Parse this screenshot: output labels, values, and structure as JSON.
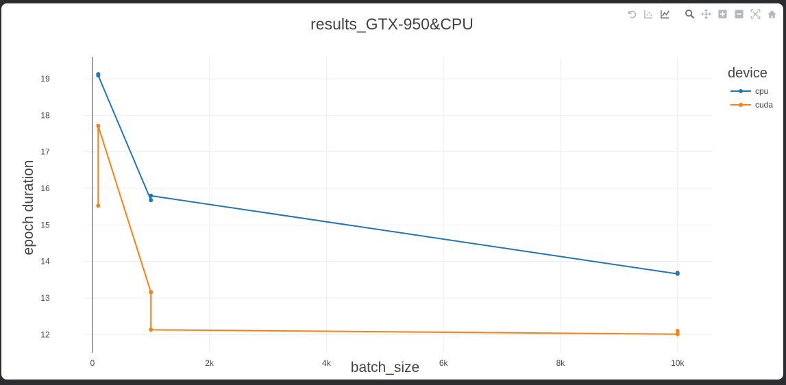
{
  "chart_data": {
    "type": "line",
    "title": "results_GTX-950&CPU",
    "xlabel": "batch_size",
    "ylabel": "epoch duration",
    "xlim": [
      -150,
      10600
    ],
    "ylim": [
      11.5,
      19.6
    ],
    "x_ticks": [
      0,
      2000,
      4000,
      6000,
      8000,
      10000
    ],
    "x_tick_labels": [
      "0",
      "2k",
      "4k",
      "6k",
      "8k",
      "10k"
    ],
    "y_ticks": [
      12,
      13,
      14,
      15,
      16,
      17,
      18,
      19
    ],
    "y_tick_labels": [
      "12",
      "13",
      "14",
      "15",
      "16",
      "17",
      "18",
      "19"
    ],
    "grid": true,
    "legend": {
      "title": "device",
      "position": "right"
    },
    "series": [
      {
        "name": "cpu",
        "color": "#1f77b4",
        "x": [
          100,
          100,
          1000,
          1000,
          10000,
          10000
        ],
        "y": [
          19.13,
          19.09,
          15.68,
          15.8,
          13.66,
          13.69
        ]
      },
      {
        "name": "cuda",
        "color": "#ff7f0e",
        "x": [
          100,
          100,
          1000,
          1000,
          10000,
          10000
        ],
        "y": [
          15.53,
          17.71,
          13.16,
          12.13,
          12.01,
          12.1
        ]
      }
    ]
  },
  "modebar": {
    "icons": [
      "reset-axes-icon",
      "compare-hover-icon",
      "spike-lines-icon",
      "zoom-icon",
      "pan-icon",
      "zoom-in-icon",
      "zoom-out-icon",
      "autoscale-icon",
      "home-icon"
    ]
  },
  "colors": {
    "grid": "#eeeeee",
    "axis_line": "#444444",
    "text": "#444444",
    "title": "#444444"
  }
}
